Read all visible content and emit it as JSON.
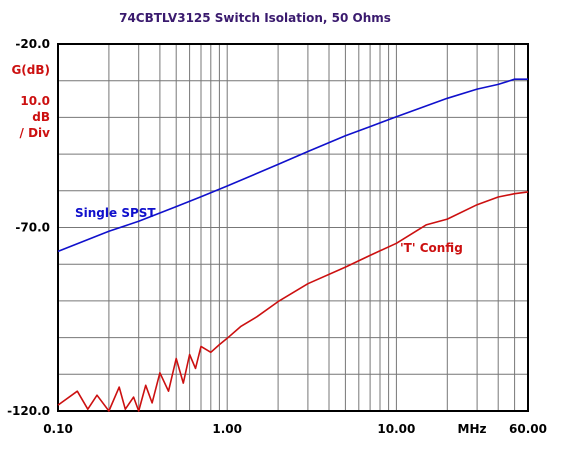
{
  "chart_data": {
    "type": "line",
    "title": "74CBTLV3125 Switch Isolation, 50 Ohms",
    "ylabel": "G(dB)",
    "y_scale_value": "10.0",
    "y_scale_unit_1": "dB",
    "y_scale_unit_2": "/ Div",
    "xunit": "MHz",
    "x_scale": "log",
    "xlim": [
      0.1,
      60
    ],
    "ylim": [
      -120,
      -20
    ],
    "grid": true,
    "x_tick_labels": [
      "0.10",
      "1.00",
      "10.00",
      "60.00"
    ],
    "x_tick_values": [
      0.1,
      1,
      10,
      60
    ],
    "y_tick_labels": [
      "-20.0",
      "-70.0",
      "-120.0"
    ],
    "y_tick_values": [
      -20,
      -70,
      -120
    ],
    "annotations": [
      "Single SPST",
      "'T' Config"
    ],
    "series": [
      {
        "name": "Single SPST",
        "color": "#1010cc",
        "x": [
          0.1,
          0.2,
          0.3,
          0.5,
          0.7,
          1,
          2,
          3,
          5,
          7,
          10,
          20,
          30,
          40,
          50,
          60
        ],
        "y": [
          -76.5,
          -71.0,
          -68.3,
          -64.3,
          -61.6,
          -58.7,
          -52.8,
          -49.3,
          -45.0,
          -42.5,
          -39.8,
          -34.8,
          -32.3,
          -31.0,
          -29.6,
          -29.6
        ]
      },
      {
        "name": "'T' Config",
        "color": "#cc1010",
        "x": [
          0.1,
          0.13,
          0.15,
          0.17,
          0.2,
          0.23,
          0.25,
          0.28,
          0.3,
          0.33,
          0.36,
          0.4,
          0.45,
          0.5,
          0.55,
          0.6,
          0.65,
          0.7,
          0.8,
          0.9,
          1,
          1.2,
          1.5,
          2,
          3,
          5,
          7,
          10,
          15,
          20,
          30,
          40,
          50,
          60
        ],
        "y": [
          -118.4,
          -114.6,
          -119.5,
          -115.7,
          -120.0,
          -113.5,
          -119.5,
          -116.2,
          -120.0,
          -113.0,
          -117.8,
          -109.6,
          -114.6,
          -105.7,
          -112.4,
          -104.6,
          -108.4,
          -102.4,
          -104.0,
          -101.9,
          -100.2,
          -97.0,
          -94.3,
          -90.2,
          -85.3,
          -80.8,
          -77.6,
          -74.3,
          -69.3,
          -67.7,
          -63.8,
          -61.7,
          -60.8,
          -60.3
        ]
      }
    ]
  }
}
